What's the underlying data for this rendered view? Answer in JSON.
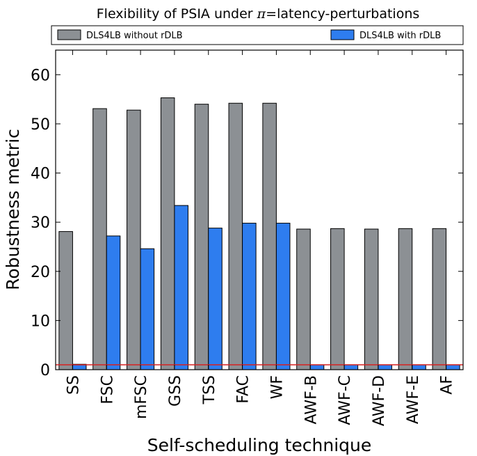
{
  "chart_data": {
    "type": "bar",
    "title": {
      "prefix": "Flexibility of PSIA under ",
      "symbol": "π",
      "suffix": "=latency-perturbations"
    },
    "xlabel": "Self-scheduling technique",
    "ylabel": "Robustness metric",
    "ylim": [
      0,
      65
    ],
    "yticks": [
      0,
      10,
      20,
      30,
      40,
      50,
      60
    ],
    "categories": [
      "SS",
      "FSC",
      "mFSC",
      "GSS",
      "TSS",
      "FAC",
      "WF",
      "AWF-B",
      "AWF-C",
      "AWF-D",
      "AWF-E",
      "AF"
    ],
    "series": [
      {
        "name": "DLS4LB without rDLB",
        "color": "#8c9094",
        "values": [
          28.1,
          53.1,
          52.8,
          55.3,
          54.0,
          54.2,
          54.2,
          28.6,
          28.7,
          28.6,
          28.7,
          28.7
        ]
      },
      {
        "name": "DLS4LB with rDLB",
        "color": "#2e7def",
        "values": [
          1.1,
          27.2,
          24.6,
          33.4,
          28.8,
          29.8,
          29.8,
          1.0,
          1.0,
          1.0,
          1.0,
          1.0
        ]
      }
    ],
    "reference_line": {
      "value": 1,
      "color": "#d62020"
    },
    "legend_placement": "top",
    "grid": false
  }
}
